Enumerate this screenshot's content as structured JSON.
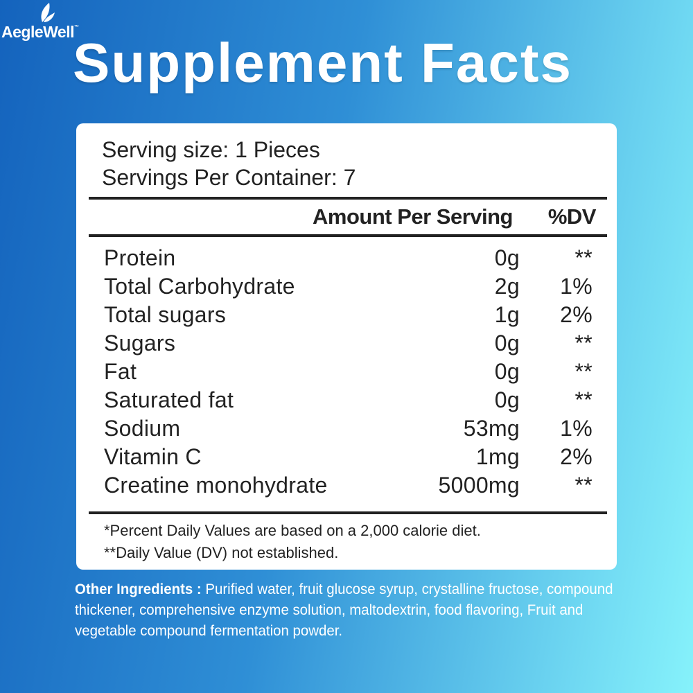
{
  "brand": {
    "name": "AegleWell",
    "tm": "™"
  },
  "title": "Supplement Facts",
  "serving_size": "Serving size: 1 Pieces",
  "servings_per_container": "Servings Per Container: 7",
  "header": {
    "amount": "Amount Per Serving",
    "dv": "%DV"
  },
  "rows": [
    {
      "name": "Protein",
      "amount": "0g",
      "dv": "**"
    },
    {
      "name": "Total Carbohydrate",
      "amount": "2g",
      "dv": "1%"
    },
    {
      "name": "Total sugars",
      "amount": "1g",
      "dv": "2%"
    },
    {
      "name": "Sugars",
      "amount": "0g",
      "dv": "**"
    },
    {
      "name": "Fat",
      "amount": "0g",
      "dv": "**"
    },
    {
      "name": "Saturated fat",
      "amount": "0g",
      "dv": "**"
    },
    {
      "name": "Sodium",
      "amount": "53mg",
      "dv": "1%"
    },
    {
      "name": "Vitamin C",
      "amount": "1mg",
      "dv": "2%"
    },
    {
      "name": "Creatine monohydrate",
      "amount": "5000mg",
      "dv": "**"
    }
  ],
  "footnotes": [
    "*Percent Daily Values are based on a 2,000 calorie diet.",
    "**Daily Value (DV) not established."
  ],
  "other_ingredients": {
    "label": "Other Ingredients :",
    "text": " Purified water, fruit glucose syrup, crystalline fructose, compound thickener, comprehensive enzyme solution, maltodextrin, food flavoring, Fruit and vegetable compound fermentation powder."
  },
  "colors": {
    "gradient_left": "#1463bd",
    "gradient_right": "#86f2fb"
  }
}
